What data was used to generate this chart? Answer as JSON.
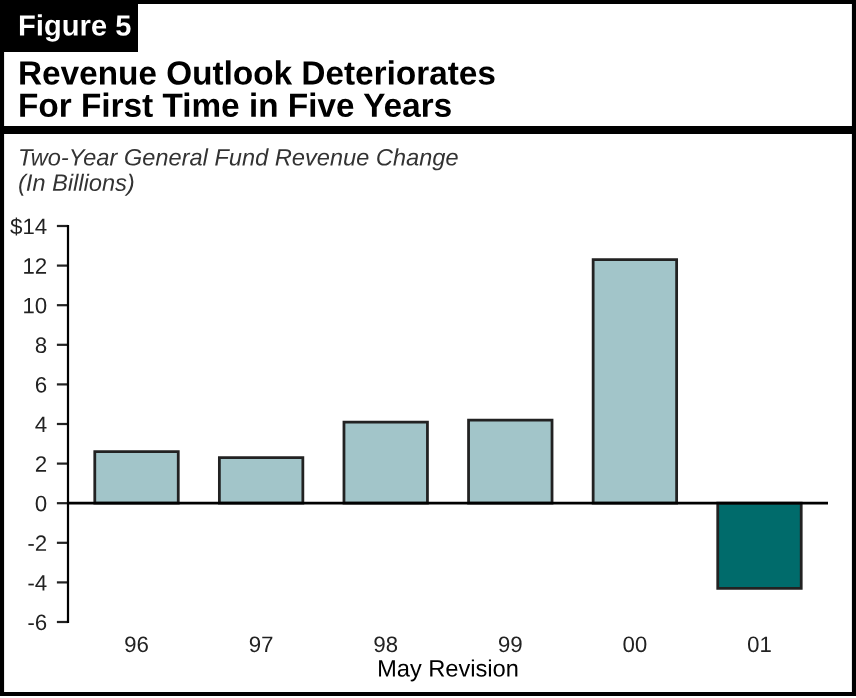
{
  "chart_data": {
    "type": "bar",
    "title": "Revenue Outlook Deteriorates\nFor First Time in Five Years",
    "annotations": [
      "Figure 5"
    ],
    "ylabel": "Two-Year General Fund Revenue Change\n(In Billions)",
    "xlabel": "May Revision",
    "categories": [
      "96",
      "97",
      "98",
      "99",
      "00",
      "01"
    ],
    "values": [
      2.6,
      2.3,
      4.1,
      4.2,
      12.3,
      -4.3
    ],
    "colors": [
      "#a2c5c9",
      "#a2c5c9",
      "#a2c5c9",
      "#a2c5c9",
      "#a2c5c9",
      "#006b6b"
    ],
    "ylim": [
      -6,
      14
    ],
    "yticks": [
      -6,
      -4,
      -2,
      0,
      2,
      4,
      6,
      8,
      10,
      12,
      {
        "value": 14,
        "label": "$14"
      }
    ],
    "legend": false
  }
}
